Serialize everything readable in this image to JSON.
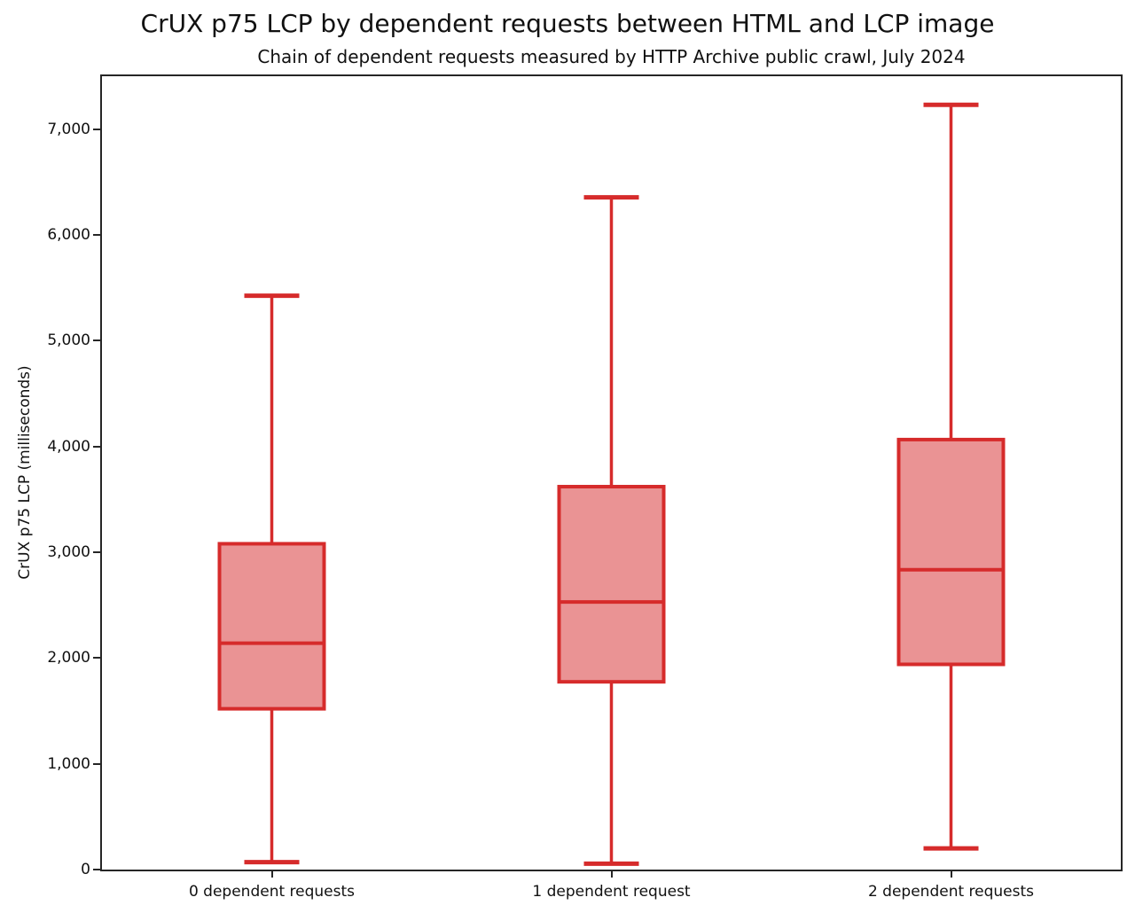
{
  "chart_data": {
    "type": "box",
    "title": "CrUX p75 LCP by dependent requests between HTML and LCP image",
    "subtitle": "Chain of dependent requests measured by HTTP Archive public crawl, July 2024",
    "ylabel": "CrUX p75 LCP (milliseconds)",
    "ylim": [
      0,
      7500
    ],
    "yticks": [
      0,
      1000,
      2000,
      3000,
      4000,
      5000,
      6000,
      7000
    ],
    "ytick_labels": [
      "0",
      "1,000",
      "2,000",
      "3,000",
      "4,000",
      "5,000",
      "6,000",
      "7,000"
    ],
    "grid": false,
    "legend": "none",
    "categories": [
      "0 dependent requests",
      "1 dependent request",
      "2 dependent requests"
    ],
    "boxes": [
      {
        "category": "0 dependent requests",
        "whisker_low": 70,
        "q1": 1520,
        "median": 2140,
        "q3": 3080,
        "whisker_high": 5425
      },
      {
        "category": "1 dependent request",
        "whisker_low": 55,
        "q1": 1775,
        "median": 2530,
        "q3": 3620,
        "whisker_high": 6355
      },
      {
        "category": "2 dependent requests",
        "whisker_low": 200,
        "q1": 1940,
        "median": 2835,
        "q3": 4065,
        "whisker_high": 7230
      }
    ],
    "colors": {
      "box_stroke": "#d62b2b",
      "box_fill": "#ea9394",
      "axis": "#262626",
      "text": "#111111",
      "background": "#ffffff"
    }
  }
}
